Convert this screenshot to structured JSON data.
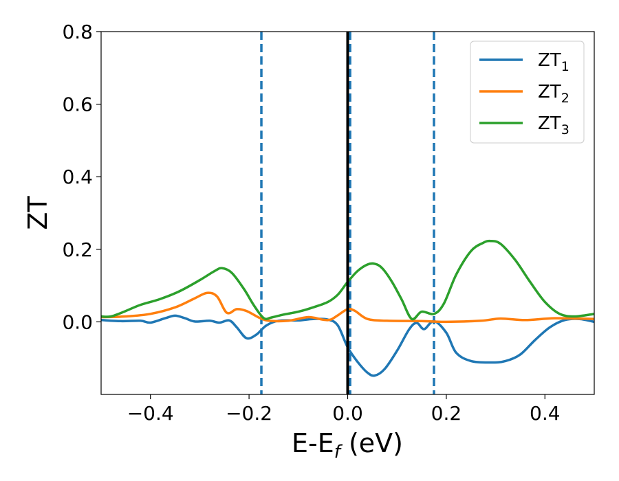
{
  "chart_data": {
    "type": "line",
    "title": "",
    "xlabel": "E-E",
    "xlabel_sub": "f",
    "xlabel_unit": " (eV)",
    "ylabel": "ZT",
    "xlim": [
      -0.5,
      0.5
    ],
    "ylim": [
      -0.2,
      0.8
    ],
    "xticks": [
      -0.4,
      -0.2,
      0.0,
      0.2,
      0.4
    ],
    "xtick_labels": [
      "−0.4",
      "−0.2",
      "0.0",
      "0.2",
      "0.4"
    ],
    "yticks": [
      0.0,
      0.2,
      0.4,
      0.6,
      0.8
    ],
    "ytick_labels": [
      "0.0",
      "0.2",
      "0.4",
      "0.6",
      "0.8"
    ],
    "grid": false,
    "legend_position": "top-right",
    "vertical_lines": [
      {
        "x": -0.175,
        "style": "dashed",
        "color": "#1f77b4"
      },
      {
        "x": 0.005,
        "style": "dashed",
        "color": "#1f77b4"
      },
      {
        "x": 0.175,
        "style": "dashed",
        "color": "#1f77b4"
      },
      {
        "x": 0.0,
        "style": "solid",
        "color": "#000000"
      }
    ],
    "series": [
      {
        "name": "ZT",
        "name_sub": "1",
        "color": "#1f77b4",
        "points": [
          [
            -0.5,
            0.005
          ],
          [
            -0.46,
            0.002
          ],
          [
            -0.42,
            0.003
          ],
          [
            -0.4,
            -0.002
          ],
          [
            -0.37,
            0.01
          ],
          [
            -0.35,
            0.017
          ],
          [
            -0.33,
            0.01
          ],
          [
            -0.31,
            0.001
          ],
          [
            -0.28,
            0.003
          ],
          [
            -0.26,
            -0.002
          ],
          [
            -0.24,
            0.004
          ],
          [
            -0.225,
            -0.015
          ],
          [
            -0.205,
            -0.045
          ],
          [
            -0.185,
            -0.035
          ],
          [
            -0.165,
            -0.01
          ],
          [
            -0.14,
            0.003
          ],
          [
            -0.1,
            0.004
          ],
          [
            -0.07,
            0.008
          ],
          [
            -0.04,
            0.006
          ],
          [
            -0.02,
            -0.01
          ],
          [
            0.0,
            -0.07
          ],
          [
            0.02,
            -0.11
          ],
          [
            0.04,
            -0.14
          ],
          [
            0.055,
            -0.148
          ],
          [
            0.075,
            -0.13
          ],
          [
            0.1,
            -0.08
          ],
          [
            0.125,
            -0.02
          ],
          [
            0.14,
            -0.003
          ],
          [
            0.155,
            -0.02
          ],
          [
            0.175,
            0.002
          ],
          [
            0.2,
            -0.03
          ],
          [
            0.22,
            -0.085
          ],
          [
            0.25,
            -0.108
          ],
          [
            0.29,
            -0.112
          ],
          [
            0.32,
            -0.108
          ],
          [
            0.35,
            -0.09
          ],
          [
            0.38,
            -0.05
          ],
          [
            0.41,
            -0.015
          ],
          [
            0.44,
            0.005
          ],
          [
            0.47,
            0.008
          ],
          [
            0.5,
            0.0
          ]
        ]
      },
      {
        "name": "ZT",
        "name_sub": "2",
        "color": "#ff7f0e",
        "points": [
          [
            -0.5,
            0.013
          ],
          [
            -0.45,
            0.015
          ],
          [
            -0.4,
            0.022
          ],
          [
            -0.35,
            0.04
          ],
          [
            -0.31,
            0.065
          ],
          [
            -0.285,
            0.08
          ],
          [
            -0.265,
            0.07
          ],
          [
            -0.245,
            0.025
          ],
          [
            -0.225,
            0.035
          ],
          [
            -0.205,
            0.03
          ],
          [
            -0.18,
            0.012
          ],
          [
            -0.16,
            0.003
          ],
          [
            -0.12,
            0.003
          ],
          [
            -0.08,
            0.013
          ],
          [
            -0.05,
            0.006
          ],
          [
            -0.035,
            0.006
          ],
          [
            -0.02,
            0.018
          ],
          [
            0.0,
            0.035
          ],
          [
            0.015,
            0.03
          ],
          [
            0.04,
            0.008
          ],
          [
            0.08,
            0.003
          ],
          [
            0.15,
            0.002
          ],
          [
            0.2,
            0.0
          ],
          [
            0.27,
            0.003
          ],
          [
            0.31,
            0.009
          ],
          [
            0.36,
            0.005
          ],
          [
            0.42,
            0.01
          ],
          [
            0.5,
            0.008
          ]
        ]
      },
      {
        "name": "ZT",
        "name_sub": "3",
        "color": "#2ca02c",
        "points": [
          [
            -0.5,
            0.015
          ],
          [
            -0.48,
            0.015
          ],
          [
            -0.45,
            0.03
          ],
          [
            -0.42,
            0.047
          ],
          [
            -0.38,
            0.063
          ],
          [
            -0.34,
            0.085
          ],
          [
            -0.3,
            0.115
          ],
          [
            -0.27,
            0.14
          ],
          [
            -0.255,
            0.148
          ],
          [
            -0.235,
            0.135
          ],
          [
            -0.21,
            0.09
          ],
          [
            -0.19,
            0.045
          ],
          [
            -0.17,
            0.01
          ],
          [
            -0.155,
            0.012
          ],
          [
            -0.13,
            0.02
          ],
          [
            -0.1,
            0.028
          ],
          [
            -0.07,
            0.04
          ],
          [
            -0.04,
            0.055
          ],
          [
            -0.02,
            0.075
          ],
          [
            0.0,
            0.11
          ],
          [
            0.02,
            0.14
          ],
          [
            0.04,
            0.158
          ],
          [
            0.055,
            0.16
          ],
          [
            0.07,
            0.148
          ],
          [
            0.09,
            0.11
          ],
          [
            0.11,
            0.06
          ],
          [
            0.13,
            0.008
          ],
          [
            0.15,
            0.028
          ],
          [
            0.175,
            0.022
          ],
          [
            0.195,
            0.05
          ],
          [
            0.22,
            0.13
          ],
          [
            0.25,
            0.195
          ],
          [
            0.275,
            0.218
          ],
          [
            0.29,
            0.223
          ],
          [
            0.31,
            0.215
          ],
          [
            0.34,
            0.17
          ],
          [
            0.37,
            0.11
          ],
          [
            0.4,
            0.055
          ],
          [
            0.43,
            0.022
          ],
          [
            0.46,
            0.015
          ],
          [
            0.5,
            0.022
          ]
        ]
      }
    ]
  }
}
